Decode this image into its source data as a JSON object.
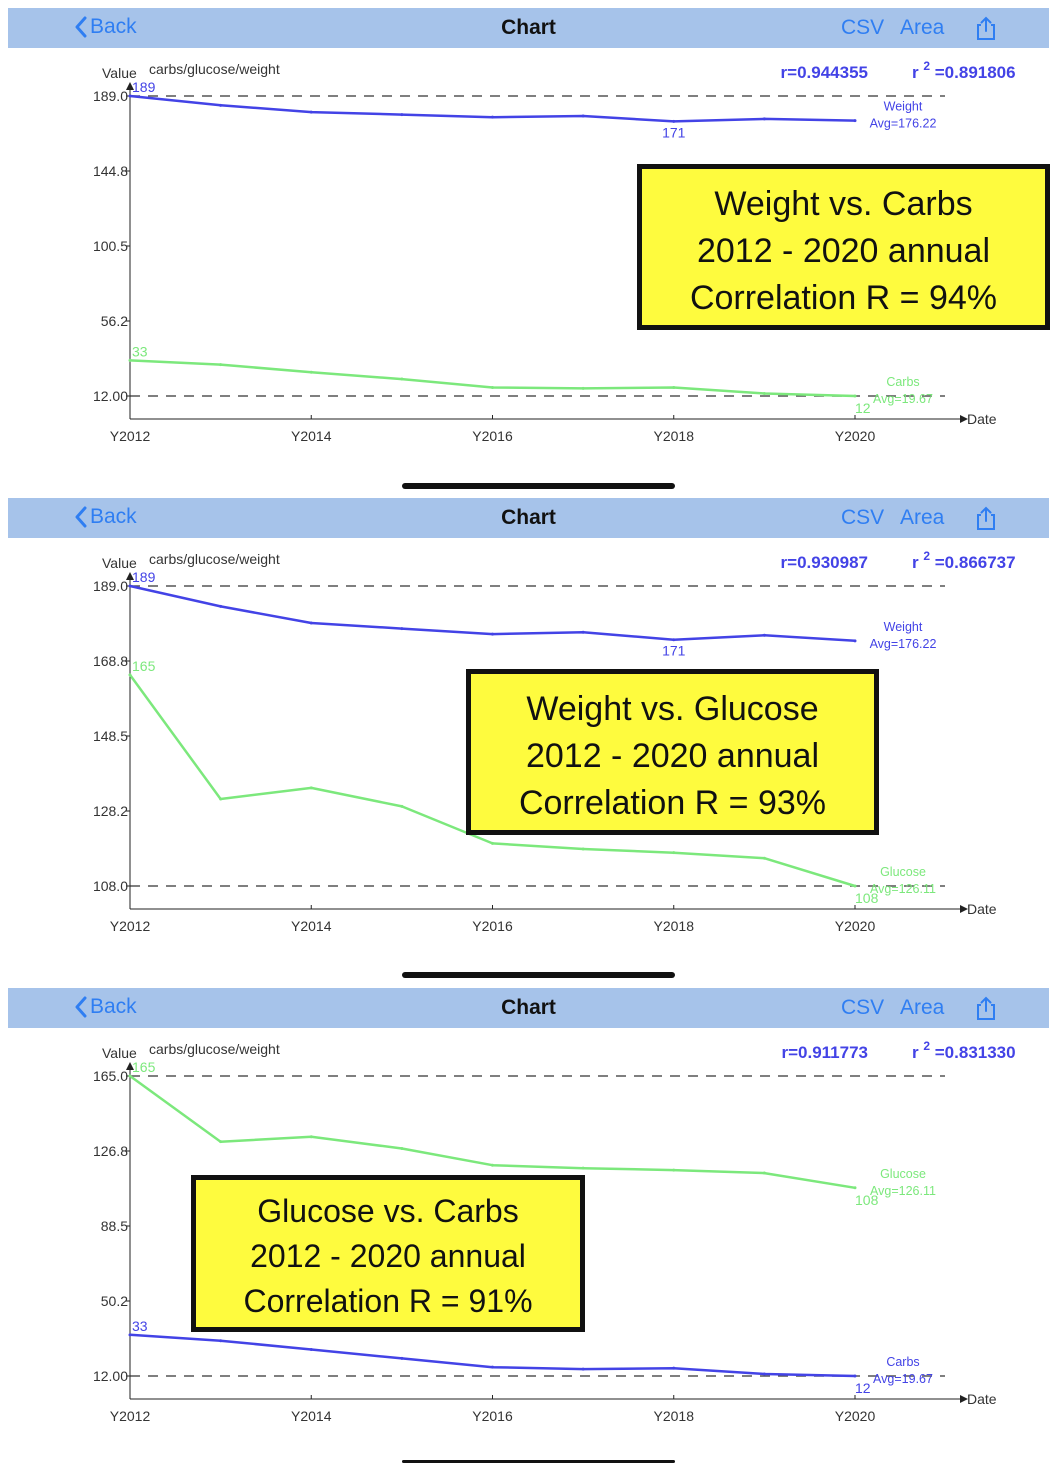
{
  "nav": {
    "back_label": "Back",
    "title": "Chart",
    "csv_label": "CSV",
    "area_label": "Area"
  },
  "colors": {
    "navbar": "#a6c3ea",
    "link": "#2f7ef2",
    "series_blue": "#4343e6",
    "series_green": "#7ce87c",
    "callout_bg": "#fefb3e"
  },
  "icons": [
    "chevron-left-icon",
    "share-icon"
  ],
  "chart_data": [
    {
      "type": "line",
      "ylabel": "Value",
      "series_label": "carbs/glucose/weight",
      "xlabel": "Date",
      "x_ticks": [
        "Y2012",
        "Y2014",
        "Y2016",
        "Y2018",
        "Y2020"
      ],
      "x": [
        2012,
        2013,
        2014,
        2015,
        2016,
        2017,
        2018,
        2019,
        2020
      ],
      "y_ticks": [
        "189.0",
        "144.8",
        "100.5",
        "56.2",
        "12.00"
      ],
      "ylim": [
        12,
        189
      ],
      "r_text": "r=0.944355",
      "r2_prefix": "r",
      "r2_sup": "2",
      "r2_value": "=0.891806",
      "series": [
        {
          "name": "Weight",
          "avg": "Avg=176.22",
          "color": "#4343e6",
          "values": [
            189,
            183.5,
            179.5,
            178,
            176.5,
            177.2,
            174,
            175.5,
            174.5
          ],
          "start_label": "189",
          "min_label": "171",
          "end_label": ""
        },
        {
          "name": "Carbs",
          "avg": "Avg=19.67",
          "color": "#7ce87c",
          "values": [
            33,
            30.5,
            26,
            22,
            17,
            16.5,
            17,
            13.5,
            12
          ],
          "start_label": "33",
          "min_label": "",
          "end_label": "12"
        }
      ],
      "callout": [
        "Weight vs. Carbs",
        "2012 - 2020 annual",
        "Correlation R = 94%"
      ]
    },
    {
      "type": "line",
      "ylabel": "Value",
      "series_label": "carbs/glucose/weight",
      "xlabel": "Date",
      "x_ticks": [
        "Y2012",
        "Y2014",
        "Y2016",
        "Y2018",
        "Y2020"
      ],
      "x": [
        2012,
        2013,
        2014,
        2015,
        2016,
        2017,
        2018,
        2019,
        2020
      ],
      "y_ticks": [
        "189.0",
        "168.8",
        "148.5",
        "128.2",
        "108.0"
      ],
      "ylim": [
        108,
        189
      ],
      "r_text": "r=0.930987",
      "r2_prefix": "r",
      "r2_sup": "2",
      "r2_value": "=0.866737",
      "series": [
        {
          "name": "Weight",
          "avg": "Avg=176.22",
          "color": "#4343e6",
          "values": [
            189,
            183.5,
            179,
            177.5,
            176,
            176.5,
            174.5,
            175.7,
            174.2
          ],
          "start_label": "189",
          "min_label": "171",
          "end_label": ""
        },
        {
          "name": "Glucose",
          "avg": "Avg=126.11",
          "color": "#7ce87c",
          "values": [
            165,
            131.5,
            134.5,
            129.5,
            119.5,
            118,
            117,
            115.5,
            108
          ],
          "start_label": "165",
          "min_label": "",
          "end_label": "108"
        }
      ],
      "callout": [
        "Weight vs. Glucose",
        "2012 - 2020 annual",
        "Correlation R = 93%"
      ]
    },
    {
      "type": "line",
      "ylabel": "Value",
      "series_label": "carbs/glucose/weight",
      "xlabel": "Date",
      "x_ticks": [
        "Y2012",
        "Y2014",
        "Y2016",
        "Y2018",
        "Y2020"
      ],
      "x": [
        2012,
        2013,
        2014,
        2015,
        2016,
        2017,
        2018,
        2019,
        2020
      ],
      "y_ticks": [
        "165.0",
        "126.8",
        "88.5",
        "50.2",
        "12.00"
      ],
      "ylim": [
        12,
        165
      ],
      "r_text": "r=0.911773",
      "r2_prefix": "r",
      "r2_sup": "2",
      "r2_value": "=0.831330",
      "series": [
        {
          "name": "Glucose",
          "avg": "Avg=126.11",
          "color": "#7ce87c",
          "values": [
            165,
            131.5,
            134,
            128,
            119.5,
            118,
            117,
            115.5,
            108
          ],
          "start_label": "165",
          "min_label": "",
          "end_label": "108"
        },
        {
          "name": "Carbs",
          "avg": "Avg=19.67",
          "color": "#4343e6",
          "values": [
            33,
            30,
            25.5,
            21,
            16.5,
            15.5,
            16,
            13,
            12
          ],
          "start_label": "33",
          "min_label": "",
          "end_label": "12"
        }
      ],
      "callout": [
        "Glucose vs. Carbs",
        "2012 - 2020 annual",
        "Correlation R = 91%"
      ]
    }
  ]
}
